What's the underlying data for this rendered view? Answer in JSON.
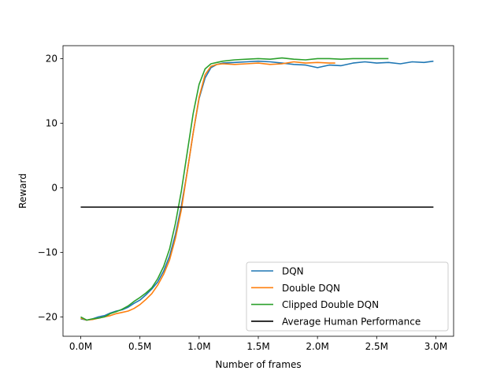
{
  "chart_data": {
    "type": "line",
    "xlabel": "Number of frames",
    "ylabel": "Reward",
    "xlim": [
      -0.15,
      3.15
    ],
    "ylim": [
      -23,
      22
    ],
    "xticks": [
      0.0,
      0.5,
      1.0,
      1.5,
      2.0,
      2.5,
      3.0
    ],
    "xtick_labels": [
      "0.0M",
      "0.5M",
      "1.0M",
      "1.5M",
      "2.0M",
      "2.5M",
      "3.0M"
    ],
    "yticks": [
      -20,
      -10,
      0,
      10,
      20
    ],
    "ytick_labels": [
      "−20",
      "−10",
      "0",
      "10",
      "20"
    ],
    "grid": false,
    "legend_position": "lower-right",
    "series": [
      {
        "name": "DQN",
        "color": "#1f77b4",
        "x": [
          0.0,
          0.05,
          0.1,
          0.15,
          0.2,
          0.25,
          0.3,
          0.35,
          0.4,
          0.45,
          0.5,
          0.55,
          0.6,
          0.65,
          0.7,
          0.75,
          0.8,
          0.85,
          0.9,
          0.95,
          1.0,
          1.05,
          1.1,
          1.15,
          1.2,
          1.3,
          1.4,
          1.5,
          1.6,
          1.7,
          1.8,
          1.9,
          2.0,
          2.1,
          2.2,
          2.3,
          2.4,
          2.5,
          2.6,
          2.7,
          2.8,
          2.9,
          2.98
        ],
        "y": [
          -20.3,
          -20.5,
          -20.3,
          -20.0,
          -19.8,
          -19.4,
          -19.1,
          -18.9,
          -18.5,
          -17.9,
          -17.4,
          -16.6,
          -15.7,
          -14.6,
          -12.9,
          -10.6,
          -7.2,
          -2.8,
          2.5,
          8.5,
          13.8,
          17.0,
          18.6,
          19.1,
          19.3,
          19.4,
          19.5,
          19.6,
          19.5,
          19.3,
          19.1,
          19.0,
          18.6,
          19.0,
          18.9,
          19.3,
          19.5,
          19.3,
          19.4,
          19.2,
          19.5,
          19.4,
          19.6
        ]
      },
      {
        "name": "Double DQN",
        "color": "#ff7f0e",
        "x": [
          0.0,
          0.05,
          0.1,
          0.15,
          0.2,
          0.25,
          0.3,
          0.35,
          0.4,
          0.45,
          0.5,
          0.55,
          0.6,
          0.65,
          0.7,
          0.75,
          0.8,
          0.85,
          0.9,
          0.95,
          1.0,
          1.05,
          1.1,
          1.15,
          1.2,
          1.3,
          1.4,
          1.5,
          1.6,
          1.7,
          1.8,
          1.9,
          2.0,
          2.1,
          2.15
        ],
        "y": [
          -20.2,
          -20.5,
          -20.4,
          -20.2,
          -20.0,
          -19.8,
          -19.5,
          -19.3,
          -19.1,
          -18.7,
          -18.1,
          -17.3,
          -16.4,
          -15.1,
          -13.4,
          -11.2,
          -7.8,
          -3.4,
          2.5,
          8.5,
          14.0,
          17.5,
          18.8,
          19.1,
          19.2,
          19.1,
          19.2,
          19.3,
          19.1,
          19.2,
          19.5,
          19.3,
          19.4,
          19.3,
          19.3
        ]
      },
      {
        "name": "Clipped Double DQN",
        "color": "#2ca02c",
        "x": [
          0.0,
          0.05,
          0.1,
          0.15,
          0.2,
          0.25,
          0.3,
          0.35,
          0.4,
          0.45,
          0.5,
          0.55,
          0.6,
          0.65,
          0.7,
          0.75,
          0.8,
          0.85,
          0.9,
          0.95,
          1.0,
          1.05,
          1.1,
          1.15,
          1.2,
          1.3,
          1.4,
          1.5,
          1.6,
          1.7,
          1.8,
          1.9,
          2.0,
          2.1,
          2.2,
          2.3,
          2.4,
          2.5,
          2.6
        ],
        "y": [
          -20.0,
          -20.5,
          -20.3,
          -20.2,
          -20.0,
          -19.5,
          -19.2,
          -18.8,
          -18.3,
          -17.6,
          -17.0,
          -16.3,
          -15.5,
          -14.1,
          -12.2,
          -9.5,
          -5.5,
          -0.5,
          5.5,
          11.5,
          16.0,
          18.4,
          19.2,
          19.4,
          19.6,
          19.8,
          19.9,
          20.0,
          19.9,
          20.1,
          19.9,
          19.8,
          20.0,
          20.0,
          19.9,
          20.0,
          20.0,
          20.0,
          20.0
        ]
      },
      {
        "name": "Average Human Performance",
        "color": "#000000",
        "x": [
          0.0,
          2.98
        ],
        "y": [
          -3.0,
          -3.0
        ]
      }
    ]
  }
}
